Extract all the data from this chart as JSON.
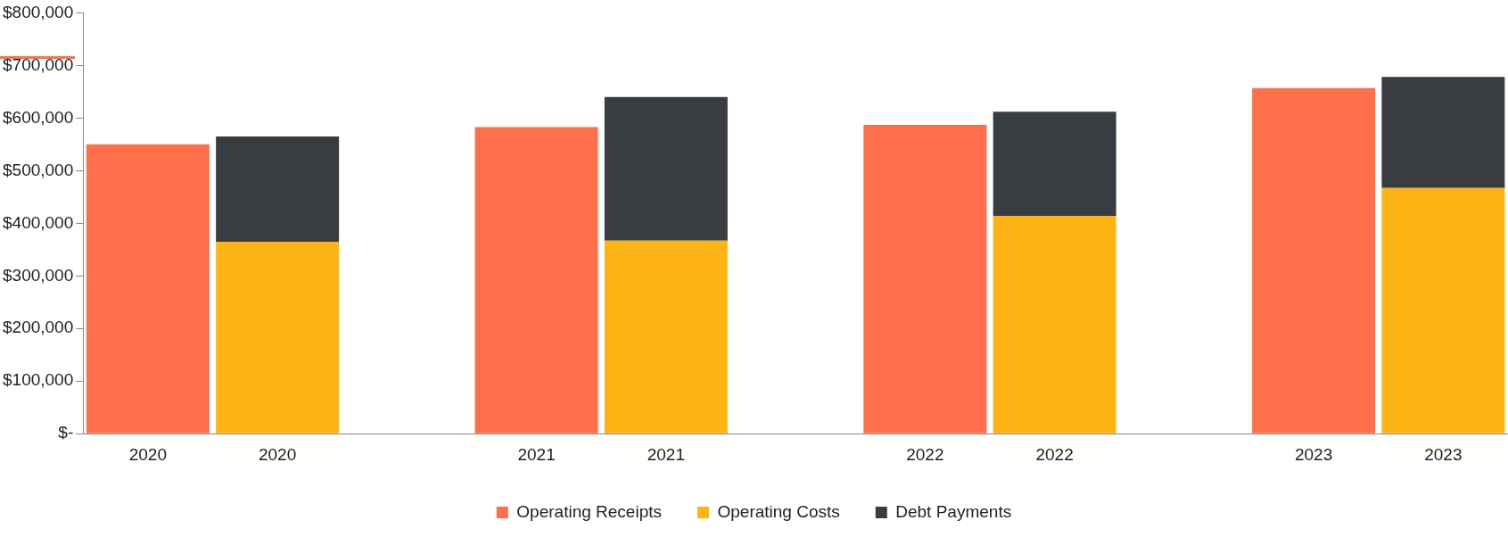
{
  "chart_data": {
    "type": "bar",
    "stacked": true,
    "categories": [
      "2020",
      "2020",
      null,
      "2021",
      "2021",
      null,
      "2022",
      "2022",
      null,
      "2023",
      "2023"
    ],
    "series": [
      {
        "name": "Operating Receipts",
        "color": "#ff6f4a",
        "values": [
          550000,
          null,
          null,
          583000,
          null,
          null,
          587000,
          null,
          null,
          657000,
          null
        ]
      },
      {
        "name": "Operating Costs",
        "color": "#fdb515",
        "values": [
          null,
          365000,
          null,
          null,
          367000,
          null,
          null,
          414000,
          null,
          null,
          467000
        ]
      },
      {
        "name": "Debt Payments",
        "color": "#393d42",
        "values": [
          null,
          200000,
          null,
          null,
          273000,
          null,
          null,
          198000,
          null,
          null,
          211000
        ]
      }
    ],
    "ylim": [
      0,
      800000
    ],
    "yticks": [
      {
        "value": 0,
        "label": "$-"
      },
      {
        "value": 100000,
        "label": "$100,000"
      },
      {
        "value": 200000,
        "label": "$200,000"
      },
      {
        "value": 300000,
        "label": "$300,000"
      },
      {
        "value": 400000,
        "label": "$400,000"
      },
      {
        "value": 500000,
        "label": "$500,000"
      },
      {
        "value": 600000,
        "label": "$600,000"
      },
      {
        "value": 700000,
        "label": "$700,000"
      },
      {
        "value": 800000,
        "label": "$800,000"
      }
    ],
    "grid": false,
    "legend": "bottom"
  }
}
